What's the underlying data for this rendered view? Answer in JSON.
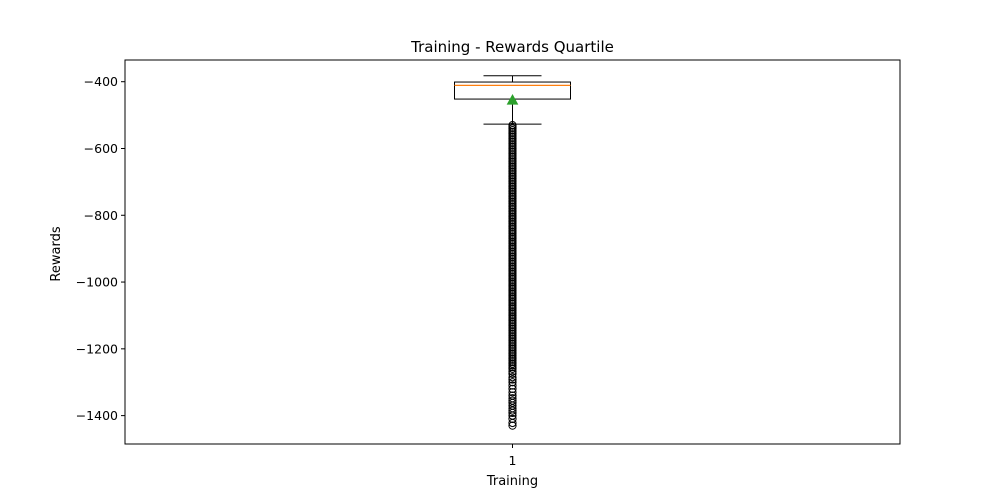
{
  "chart_data": {
    "type": "box",
    "title": "Training - Rewards Quartile",
    "xlabel": "Training",
    "ylabel": "Rewards",
    "categories": [
      "1"
    ],
    "ylim": [
      -1485,
      -335
    ],
    "yticks": [
      -400,
      -600,
      -800,
      -1000,
      -1200,
      -1400
    ],
    "ytick_labels": [
      "−400",
      "−600",
      "−800",
      "−1000",
      "−1200",
      "−1400"
    ],
    "grid": false,
    "legend": "none",
    "colors": {
      "box": "#000000",
      "median": "#ff7f0e",
      "mean": "#2ca02c",
      "flier": "#000000"
    },
    "boxes": [
      {
        "category": "1",
        "whisker_high": -382,
        "q3": -401,
        "median": -411,
        "q1": -452,
        "whisker_low": -527,
        "mean": -455,
        "fliers": [
          -530,
          -535,
          -540,
          -545,
          -550,
          -555,
          -560,
          -565,
          -570,
          -575,
          -580,
          -585,
          -590,
          -595,
          -600,
          -605,
          -610,
          -615,
          -620,
          -625,
          -630,
          -635,
          -640,
          -645,
          -650,
          -655,
          -660,
          -665,
          -670,
          -675,
          -680,
          -685,
          -690,
          -695,
          -700,
          -705,
          -710,
          -715,
          -720,
          -725,
          -730,
          -735,
          -740,
          -745,
          -750,
          -755,
          -760,
          -765,
          -770,
          -775,
          -780,
          -785,
          -790,
          -795,
          -800,
          -805,
          -810,
          -815,
          -820,
          -825,
          -830,
          -835,
          -840,
          -845,
          -850,
          -855,
          -860,
          -865,
          -870,
          -875,
          -880,
          -885,
          -890,
          -895,
          -900,
          -905,
          -910,
          -915,
          -920,
          -925,
          -930,
          -935,
          -940,
          -945,
          -950,
          -955,
          -960,
          -965,
          -970,
          -975,
          -980,
          -985,
          -990,
          -995,
          -1000,
          -1005,
          -1010,
          -1015,
          -1020,
          -1025,
          -1030,
          -1035,
          -1040,
          -1045,
          -1050,
          -1055,
          -1060,
          -1065,
          -1070,
          -1075,
          -1080,
          -1085,
          -1090,
          -1095,
          -1100,
          -1105,
          -1110,
          -1115,
          -1120,
          -1125,
          -1130,
          -1135,
          -1140,
          -1145,
          -1150,
          -1155,
          -1160,
          -1165,
          -1170,
          -1175,
          -1180,
          -1185,
          -1190,
          -1195,
          -1200,
          -1205,
          -1210,
          -1215,
          -1220,
          -1225,
          -1230,
          -1235,
          -1240,
          -1245,
          -1250,
          -1255,
          -1260,
          -1268,
          -1275,
          -1285,
          -1292,
          -1300,
          -1310,
          -1320,
          -1330,
          -1340,
          -1348,
          -1355,
          -1362,
          -1370,
          -1378,
          -1385,
          -1392,
          -1400,
          -1410,
          -1422,
          -1430
        ]
      }
    ]
  }
}
